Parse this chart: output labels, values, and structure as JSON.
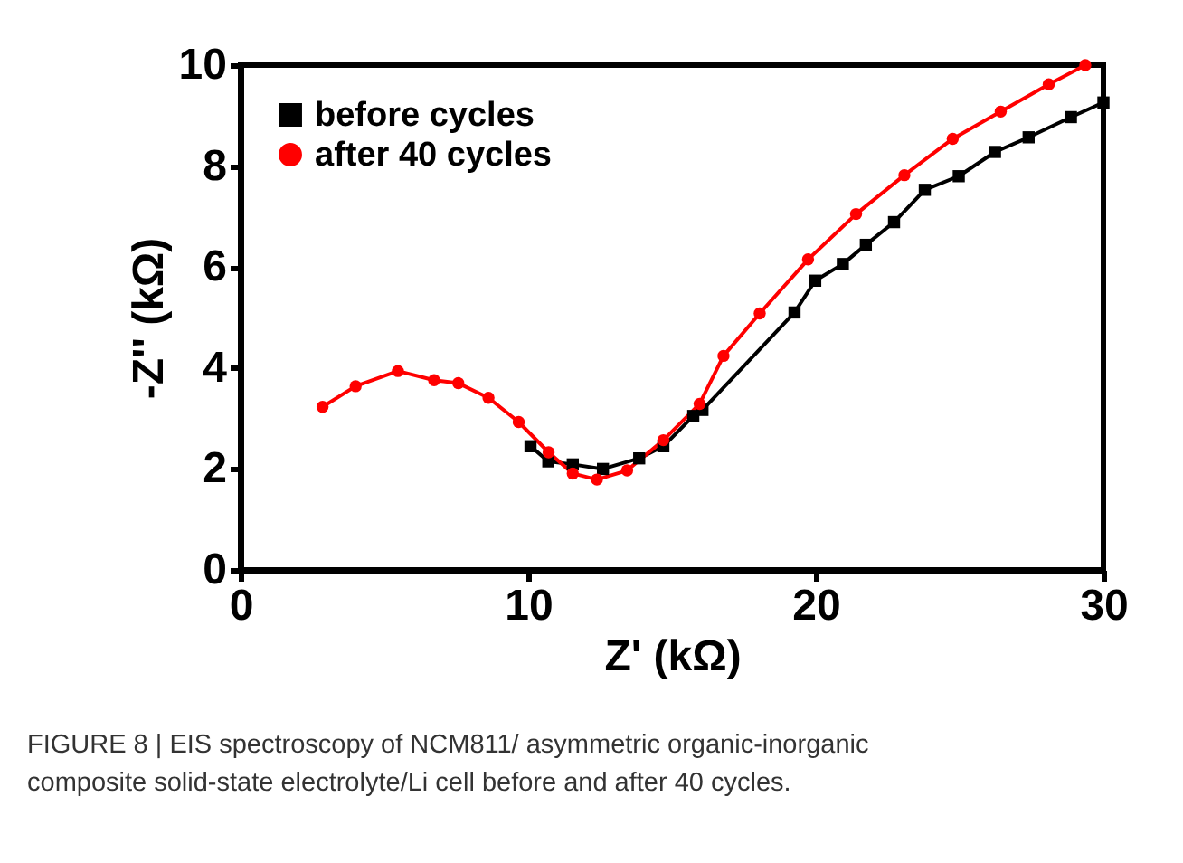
{
  "chart_data": {
    "type": "line",
    "xlabel": "Z' (kΩ)",
    "ylabel": "-Z'' (kΩ)",
    "xlim": [
      0,
      30
    ],
    "ylim": [
      0,
      10
    ],
    "xticks": [
      0,
      10,
      20,
      30
    ],
    "yticks": [
      0,
      2,
      4,
      6,
      8,
      10
    ],
    "grid": false,
    "legend": "top left",
    "line_style": "solid",
    "series": [
      {
        "name": "before cycles",
        "color": "#000000",
        "marker": "square",
        "x": [
          10.08,
          10.7,
          11.55,
          12.6,
          13.86,
          14.7,
          15.74,
          16.06,
          19.26,
          19.98,
          20.94,
          21.74,
          22.72,
          23.79,
          24.97,
          26.23,
          27.4,
          28.87,
          30
        ],
        "values": [
          2.45,
          2.15,
          2.09,
          2.0,
          2.21,
          2.45,
          3.05,
          3.17,
          5.1,
          5.73,
          6.06,
          6.44,
          6.89,
          7.53,
          7.8,
          8.28,
          8.57,
          8.97,
          9.26
        ]
      },
      {
        "name": "after 40 cycles",
        "color": "#ff0000",
        "marker": "circle",
        "x": [
          2.85,
          4.0,
          5.47,
          6.73,
          7.57,
          8.62,
          9.67,
          10.71,
          11.55,
          12.39,
          13.44,
          14.7,
          15.96,
          16.79,
          18.05,
          19.73,
          21.4,
          23.08,
          24.76,
          26.43,
          28.1,
          29.37
        ],
        "values": [
          3.23,
          3.64,
          3.94,
          3.76,
          3.7,
          3.41,
          2.93,
          2.33,
          1.91,
          1.79,
          1.97,
          2.57,
          3.29,
          4.24,
          5.08,
          6.15,
          7.05,
          7.82,
          8.54,
          9.08,
          9.62,
          10.0
        ]
      }
    ],
    "annotations": [
      "FIGURE 8 | EIS spectroscopy of NCM811/ asymmetric organic-inorganic composite solid-state electrolyte/Li cell before and after 40 cycles."
    ]
  }
}
